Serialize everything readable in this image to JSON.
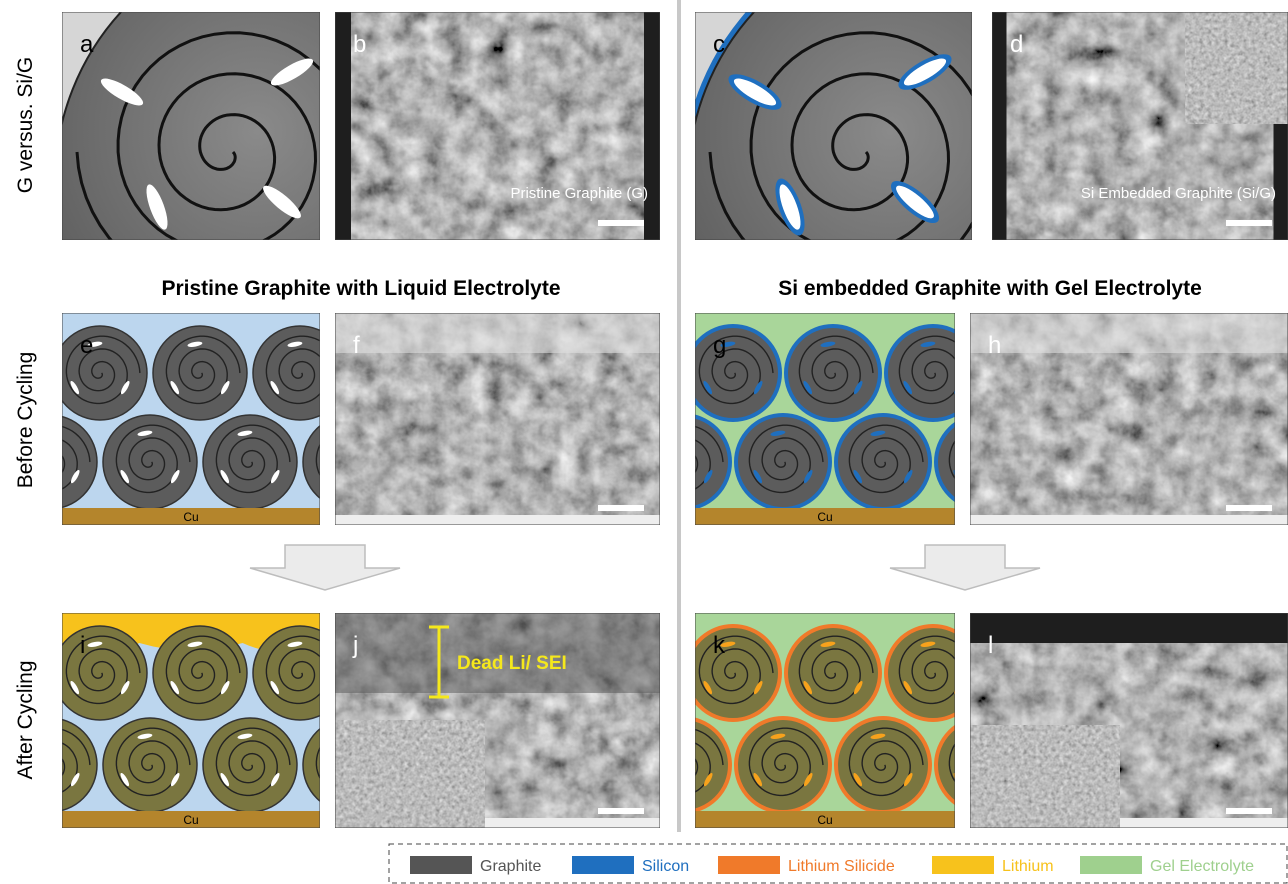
{
  "row_labels": [
    "G versus. Si/G",
    "Before Cycling",
    "After Cycling"
  ],
  "headings": [
    "Pristine Graphite with Liquid Electrolyte",
    "Si embedded Graphite with Gel Electrolyte"
  ],
  "panels": [
    {
      "letter": "a"
    },
    {
      "letter": "b",
      "caption": "Pristine Graphite (G)"
    },
    {
      "letter": "c"
    },
    {
      "letter": "d",
      "caption": "Si Embedded Graphite (Si/G)"
    },
    {
      "letter": "e",
      "substrate": "Cu"
    },
    {
      "letter": "f"
    },
    {
      "letter": "g",
      "substrate": "Cu"
    },
    {
      "letter": "h"
    },
    {
      "letter": "i",
      "substrate": "Cu"
    },
    {
      "letter": "j",
      "annotation": "Dead Li/ SEI"
    },
    {
      "letter": "k",
      "substrate": "Cu"
    },
    {
      "letter": "l"
    }
  ],
  "legend": [
    {
      "label": "Graphite",
      "color": "#555555"
    },
    {
      "label": "Silicon",
      "color": "#1f6fbf"
    },
    {
      "label": "Lithium Silicide",
      "color": "#f07a2a"
    },
    {
      "label": "Lithium",
      "color": "#f7c21c"
    },
    {
      "label": "Gel Electrolyte",
      "color": "#9fd08e"
    }
  ]
}
